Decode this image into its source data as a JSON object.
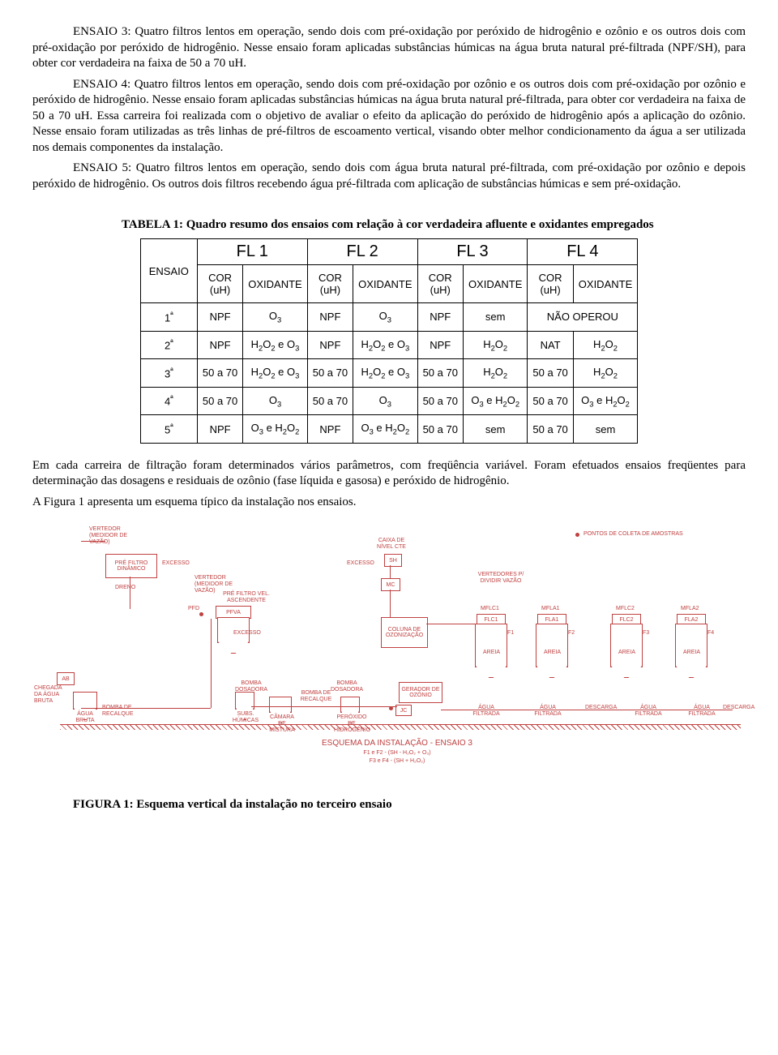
{
  "paragraphs": {
    "p1": "ENSAIO 3: Quatro filtros lentos em operação, sendo dois com pré-oxidação por peróxido de hidrogênio e ozônio e os outros dois com pré-oxidação por peróxido de hidrogênio. Nesse ensaio foram aplicadas substâncias húmicas na água bruta natural pré-filtrada (NPF/SH), para obter cor verdadeira na faixa de 50 a 70 uH.",
    "p2": "ENSAIO 4: Quatro filtros lentos em operação, sendo dois com pré-oxidação por ozônio e os outros dois com pré-oxidação por ozônio e peróxido de hidrogênio. Nesse ensaio foram aplicadas substâncias húmicas na água bruta natural pré-filtrada, para obter cor verdadeira na faixa de 50 a 70 uH. Essa carreira foi realizada com o objetivo de avaliar o efeito da aplicação do peróxido de hidrogênio após a aplicação do ozônio. Nesse ensaio foram utilizadas as três linhas de pré-filtros de escoamento vertical, visando obter melhor condicionamento da água a ser utilizada nos demais componentes da instalação.",
    "p3": "ENSAIO 5: Quatro filtros lentos em operação, sendo dois com água bruta natural pré-filtrada, com pré-oxidação por ozônio e depois peróxido de hidrogênio. Os outros dois filtros recebendo água pré-filtrada com aplicação de substâncias húmicas e sem pré-oxidação.",
    "table_title": "TABELA 1: Quadro resumo dos ensaios com relação à cor verdadeira afluente e oxidantes empregados",
    "p4": "Em cada carreira de filtração foram determinados vários parâmetros, com freqüência variável. Foram efetuados ensaios freqüentes para determinação das dosagens e residuais de ozônio (fase líquida e gasosa) e peróxido de hidrogênio.",
    "p5": "A Figura 1 apresenta um esquema típico da instalação nos ensaios.",
    "fig_caption": "FIGURA 1: Esquema vertical da instalação no terceiro ensaio"
  },
  "table": {
    "ensaio_head": "ENSAIO",
    "fl_heads": [
      "FL 1",
      "FL 2",
      "FL 3",
      "FL 4"
    ],
    "sub_cor": "COR (uH)",
    "sub_ox": "OXIDANTE",
    "rows": [
      {
        "e": "1ª",
        "c1": "NPF",
        "o1": "O3",
        "c2": "NPF",
        "o2": "O3",
        "c3": "NPF",
        "o3": "sem",
        "c4": "NÃO OPEROU",
        "o4": "",
        "span4": true
      },
      {
        "e": "2ª",
        "c1": "NPF",
        "o1": "H2O2_e_O3",
        "c2": "NPF",
        "o2": "H2O2_e_O3",
        "c3": "NPF",
        "o3": "H2O2",
        "c4": "NAT",
        "o4": "H2O2"
      },
      {
        "e": "3ª",
        "c1": "50 a 70",
        "o1": "H2O2_e_O3",
        "c2": "50 a 70",
        "o2": "H2O2_e_O3",
        "c3": "50 a 70",
        "o3": "H2O2",
        "c4": "50 a 70",
        "o4": "H2O2"
      },
      {
        "e": "4ª",
        "c1": "50 a 70",
        "o1": "O3",
        "c2": "50 a 70",
        "o2": "O3",
        "c3": "50 a 70",
        "o3": "O3_e_H2O2",
        "c4": "50 a 70",
        "o4": "O3_e_H2O2"
      },
      {
        "e": "5ª",
        "c1": "NPF",
        "o1": "O3_e_H2O2",
        "c2": "NPF",
        "o2": "O3_e_H2O2",
        "c3": "50 a 70",
        "o3": "sem",
        "c4": "50 a 70",
        "o4": "sem"
      }
    ]
  },
  "schematic": {
    "colors": {
      "line": "#c04040"
    },
    "pointos_label": "PONTOS DE COLETA DE AMOSTRAS",
    "title": "ESQUEMA DA INSTALAÇÃO - ENSAIO 3",
    "sub1": "F1 e F2 - (SH - H₂O₂ + O₃)",
    "sub2": "F3 e F4 - (SH + H₂O₂)",
    "labels": {
      "vertedor1": "VERTEDOR (MEDIDOR DE VAZÃO)",
      "pre_filtro_din": "PRÉ FILTRO DINÂMICO",
      "excesso": "EXCESSO",
      "dreno": "DRENO",
      "pfd": "PFD",
      "vertedor2": "VERTEDOR (MEDIDOR DE VAZÃO)",
      "pre_filtro_va": "PRÉ FILTRO VEL. ASCENDENTE",
      "pfva": "PFVA",
      "caixa_nivel": "CAIXA DE NÍVEL CTE",
      "sh": "SH",
      "mc": "MC",
      "coluna": "COLUNA DE OZONIZAÇÃO",
      "vertedores_div": "VERTEDORES P/ DIVIDIR VAZÃO",
      "mflc1": "MFLC1",
      "mfla1": "MFLA1",
      "mflc2": "MFLC2",
      "mfla2": "MFLA2",
      "flc1": "FLC1",
      "fla1": "FLA1",
      "flc2": "FLC2",
      "fla2": "FLA2",
      "f1": "F1",
      "f2": "F2",
      "f3": "F3",
      "f4": "F4",
      "areia": "AREIA",
      "ab": "AB",
      "chegada": "CHEGADA DA ÁGUA BRUTA",
      "agua_bruta": "ÁGUA BRUTA",
      "bomba_recalque": "BOMBA DE RECALQUE",
      "bomba_dosadora": "BOMBA DOSADORA",
      "subs_humicas": "SUBS. HÚMICAS",
      "camara_mistura": "CÂMARA DE MISTURA",
      "bomba_recalque2": "BOMBA DE RECALQUE",
      "peroxido": "PERÓXIDO DE HIDROGÊNIO",
      "gerador_ozonio": "GERADOR DE OZÔNIO",
      "jc": "JC",
      "agua_filtrada": "ÁGUA FILTRADA",
      "descarga": "DESCARGA"
    }
  }
}
